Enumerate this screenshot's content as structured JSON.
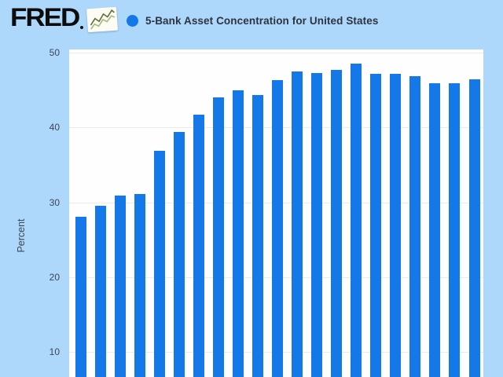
{
  "header": {
    "logo_text": "FRED",
    "logo_registered_mark": "registered-trademark-dot",
    "logo_icon": "sparkline-chart-icon",
    "series_title": "5-Bank Asset Concentration for United States"
  },
  "colors": {
    "page_background": "#aed8fb",
    "plot_background": "#fefefe",
    "bar_blue": "#1578e8",
    "legend_dot_blue": "#1578e8",
    "gridline": "#ebebeb",
    "title_text": "#2b3440",
    "axis_text": "#3d4654",
    "logo_text": "#0c0c0c"
  },
  "chart_data": {
    "type": "bar",
    "title": "5-Bank Asset Concentration for United States",
    "xlabel": "",
    "ylabel": "Percent",
    "yticks": [
      50,
      40,
      30,
      20,
      10
    ],
    "ylim": [
      0,
      50
    ],
    "grid": "horizontal",
    "legend_position": "top-header",
    "x_axis_labels_visible": false,
    "clipped_at_bottom": true,
    "bar_count": 21,
    "values": [
      28.1,
      29.5,
      30.9,
      31.1,
      36.9,
      39.4,
      41.7,
      44.0,
      45.0,
      44.3,
      46.3,
      47.5,
      47.3,
      47.7,
      48.5,
      47.2,
      47.2,
      46.9,
      45.9,
      45.9,
      46.4
    ]
  }
}
